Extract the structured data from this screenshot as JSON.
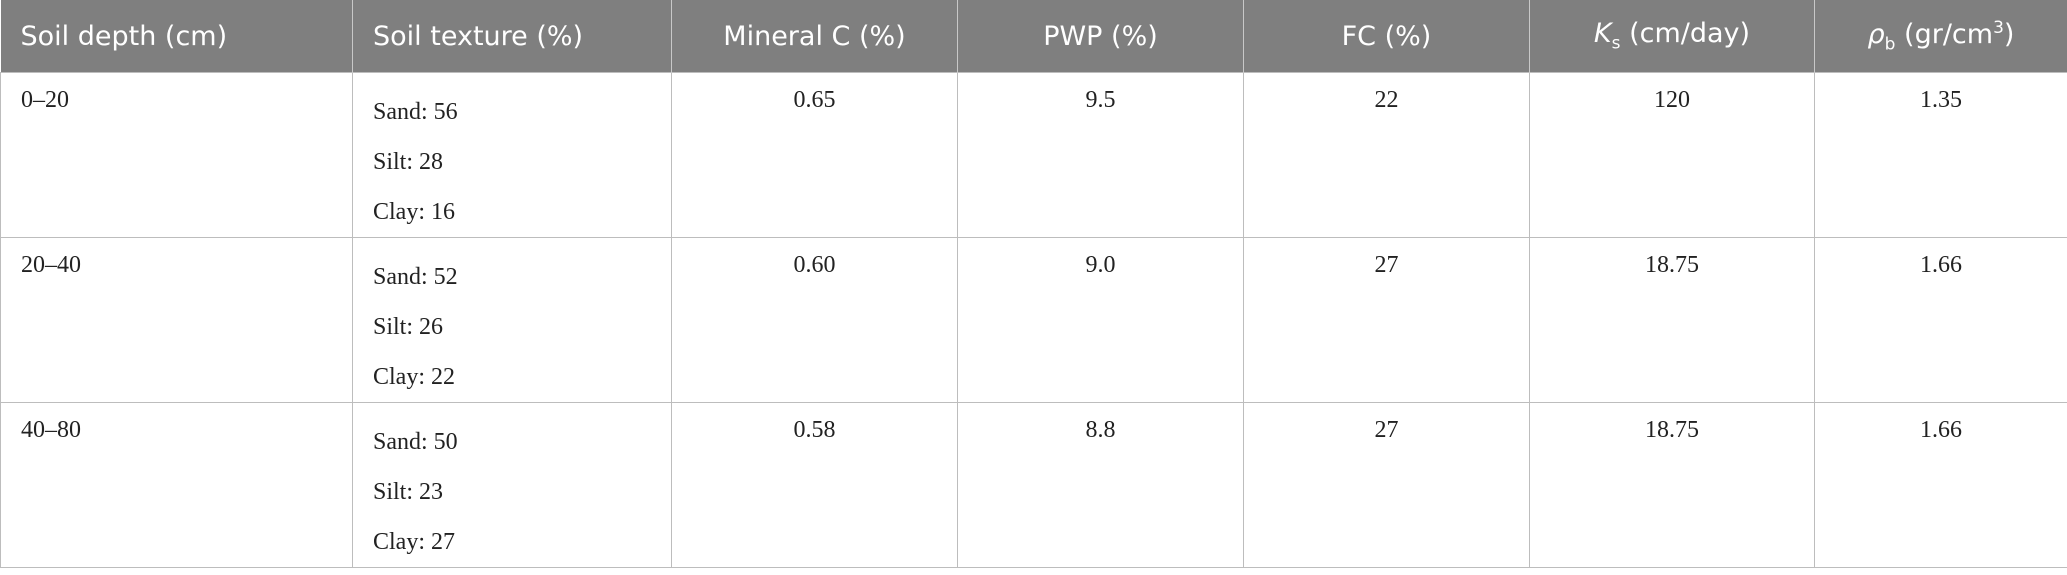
{
  "table": {
    "headers": [
      [
        {
          "text": "Soil depth (cm)"
        }
      ],
      [
        {
          "text": "Soil texture (%)"
        }
      ],
      [
        {
          "text": "Mineral C (%)"
        }
      ],
      [
        {
          "text": "PWP (%)"
        }
      ],
      [
        {
          "text": "FC (%)"
        }
      ],
      [
        {
          "text": "K",
          "style": "italic"
        },
        {
          "text": "s",
          "style": "sub"
        },
        {
          "text": " (cm/day)"
        }
      ],
      [
        {
          "text": "ρ",
          "style": "italic"
        },
        {
          "text": "b",
          "style": "sub"
        },
        {
          "text": " (gr/cm"
        },
        {
          "text": "3",
          "style": "sup"
        },
        {
          "text": ")"
        }
      ]
    ],
    "rows": [
      [
        [
          "0–20"
        ],
        [
          "Sand: 56",
          "Silt: 28",
          "Clay: 16"
        ],
        [
          "0.65"
        ],
        [
          "9.5"
        ],
        [
          "22"
        ],
        [
          "120"
        ],
        [
          "1.35"
        ]
      ],
      [
        [
          "20–40"
        ],
        [
          "Sand: 52",
          "Silt: 26",
          "Clay: 22"
        ],
        [
          "0.60"
        ],
        [
          "9.0"
        ],
        [
          "27"
        ],
        [
          "18.75"
        ],
        [
          "1.66"
        ]
      ],
      [
        [
          "40–80"
        ],
        [
          "Sand: 50",
          "Silt: 23",
          "Clay: 27"
        ],
        [
          "0.58"
        ],
        [
          "8.8"
        ],
        [
          "27"
        ],
        [
          "18.75"
        ],
        [
          "1.66"
        ]
      ]
    ]
  }
}
